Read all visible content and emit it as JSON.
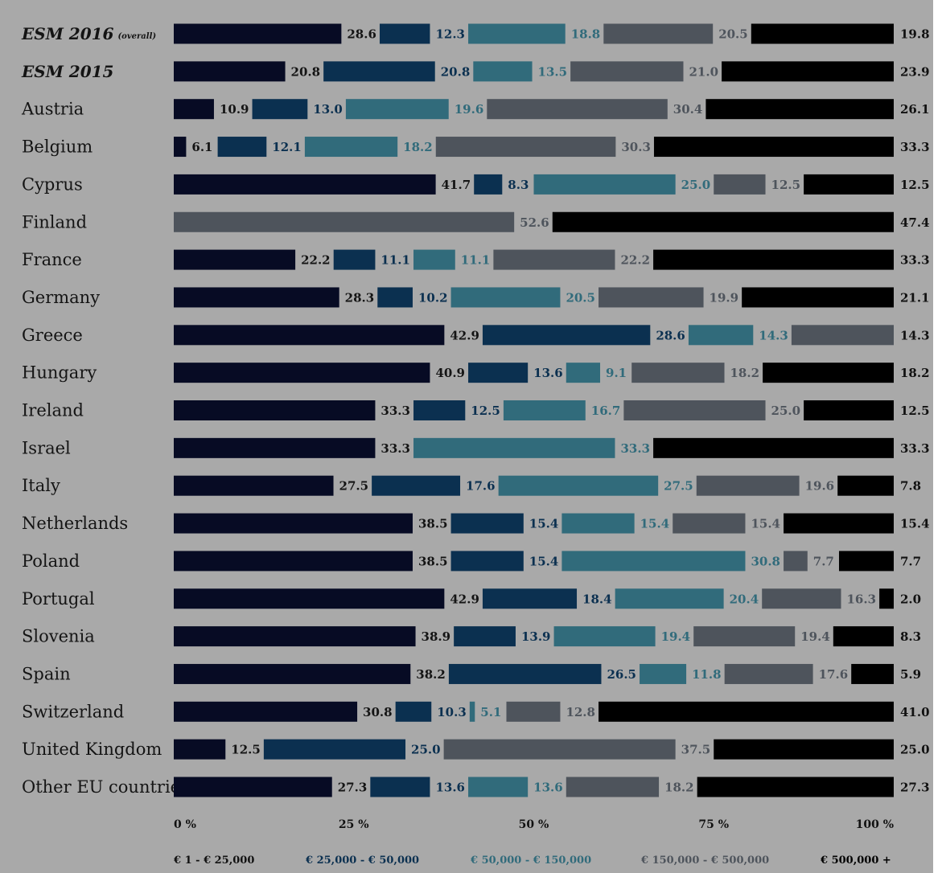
{
  "chart_data": {
    "type": "bar",
    "orientation": "horizontal",
    "stacked": true,
    "categories": [
      "ESM 2016",
      "ESM 2015",
      "Austria",
      "Belgium",
      "Cyprus",
      "Finland",
      "France",
      "Germany",
      "Greece",
      "Hungary",
      "Ireland",
      "Israel",
      "Italy",
      "Netherlands",
      "Poland",
      "Portugal",
      "Slovenia",
      "Spain",
      "Switzerland",
      "United Kingdom",
      "Other EU countries"
    ],
    "category_note": "(overall)",
    "emphasized_categories": [
      "ESM 2016",
      "ESM 2015"
    ],
    "series": [
      {
        "name": "€ 1 - € 25,000",
        "color": "#070b24",
        "values": [
          28.6,
          20.8,
          10.9,
          6.1,
          41.7,
          0,
          22.2,
          28.3,
          42.9,
          40.9,
          33.3,
          33.3,
          27.5,
          38.5,
          38.5,
          42.9,
          38.9,
          38.2,
          30.8,
          12.5,
          27.3
        ]
      },
      {
        "name": "€ 25,000 - € 50,000",
        "color": "#0b3050",
        "values": [
          12.3,
          20.8,
          13.0,
          12.1,
          8.3,
          0,
          11.1,
          10.2,
          28.6,
          13.6,
          12.5,
          0,
          17.6,
          15.4,
          15.4,
          18.4,
          13.9,
          26.5,
          10.3,
          25.0,
          13.6
        ]
      },
      {
        "name": "€ 50,000 - € 150,000",
        "color": "#316b7b",
        "values": [
          18.8,
          13.5,
          19.6,
          18.2,
          25.0,
          0,
          11.1,
          20.5,
          14.3,
          9.1,
          16.7,
          33.3,
          27.5,
          15.4,
          30.8,
          20.4,
          19.4,
          11.8,
          5.1,
          0,
          13.6
        ]
      },
      {
        "name": "€ 150,000 - € 500,000",
        "color": "#4e545c",
        "values": [
          20.5,
          21.0,
          30.4,
          30.3,
          12.5,
          52.6,
          22.2,
          19.9,
          14.3,
          18.2,
          25.0,
          0,
          19.6,
          15.4,
          7.7,
          16.3,
          19.4,
          17.6,
          12.8,
          37.5,
          18.2
        ]
      },
      {
        "name": "€ 500,000 +",
        "color": "#000000",
        "values": [
          19.8,
          23.9,
          26.1,
          33.3,
          12.5,
          47.4,
          33.3,
          21.1,
          0,
          18.2,
          12.5,
          33.3,
          7.8,
          15.4,
          7.7,
          2.0,
          8.3,
          5.9,
          41.0,
          25.0,
          27.3
        ]
      }
    ],
    "label_colors": [
      "#141414",
      "#0b3050",
      "#316b7b",
      "#4e545c",
      "#000000"
    ],
    "xlim": [
      0,
      100
    ],
    "x_ticks": [
      "0 %",
      "25 %",
      "50 %",
      "75 %",
      "100 %"
    ],
    "legend_position": "bottom",
    "grid": false
  }
}
